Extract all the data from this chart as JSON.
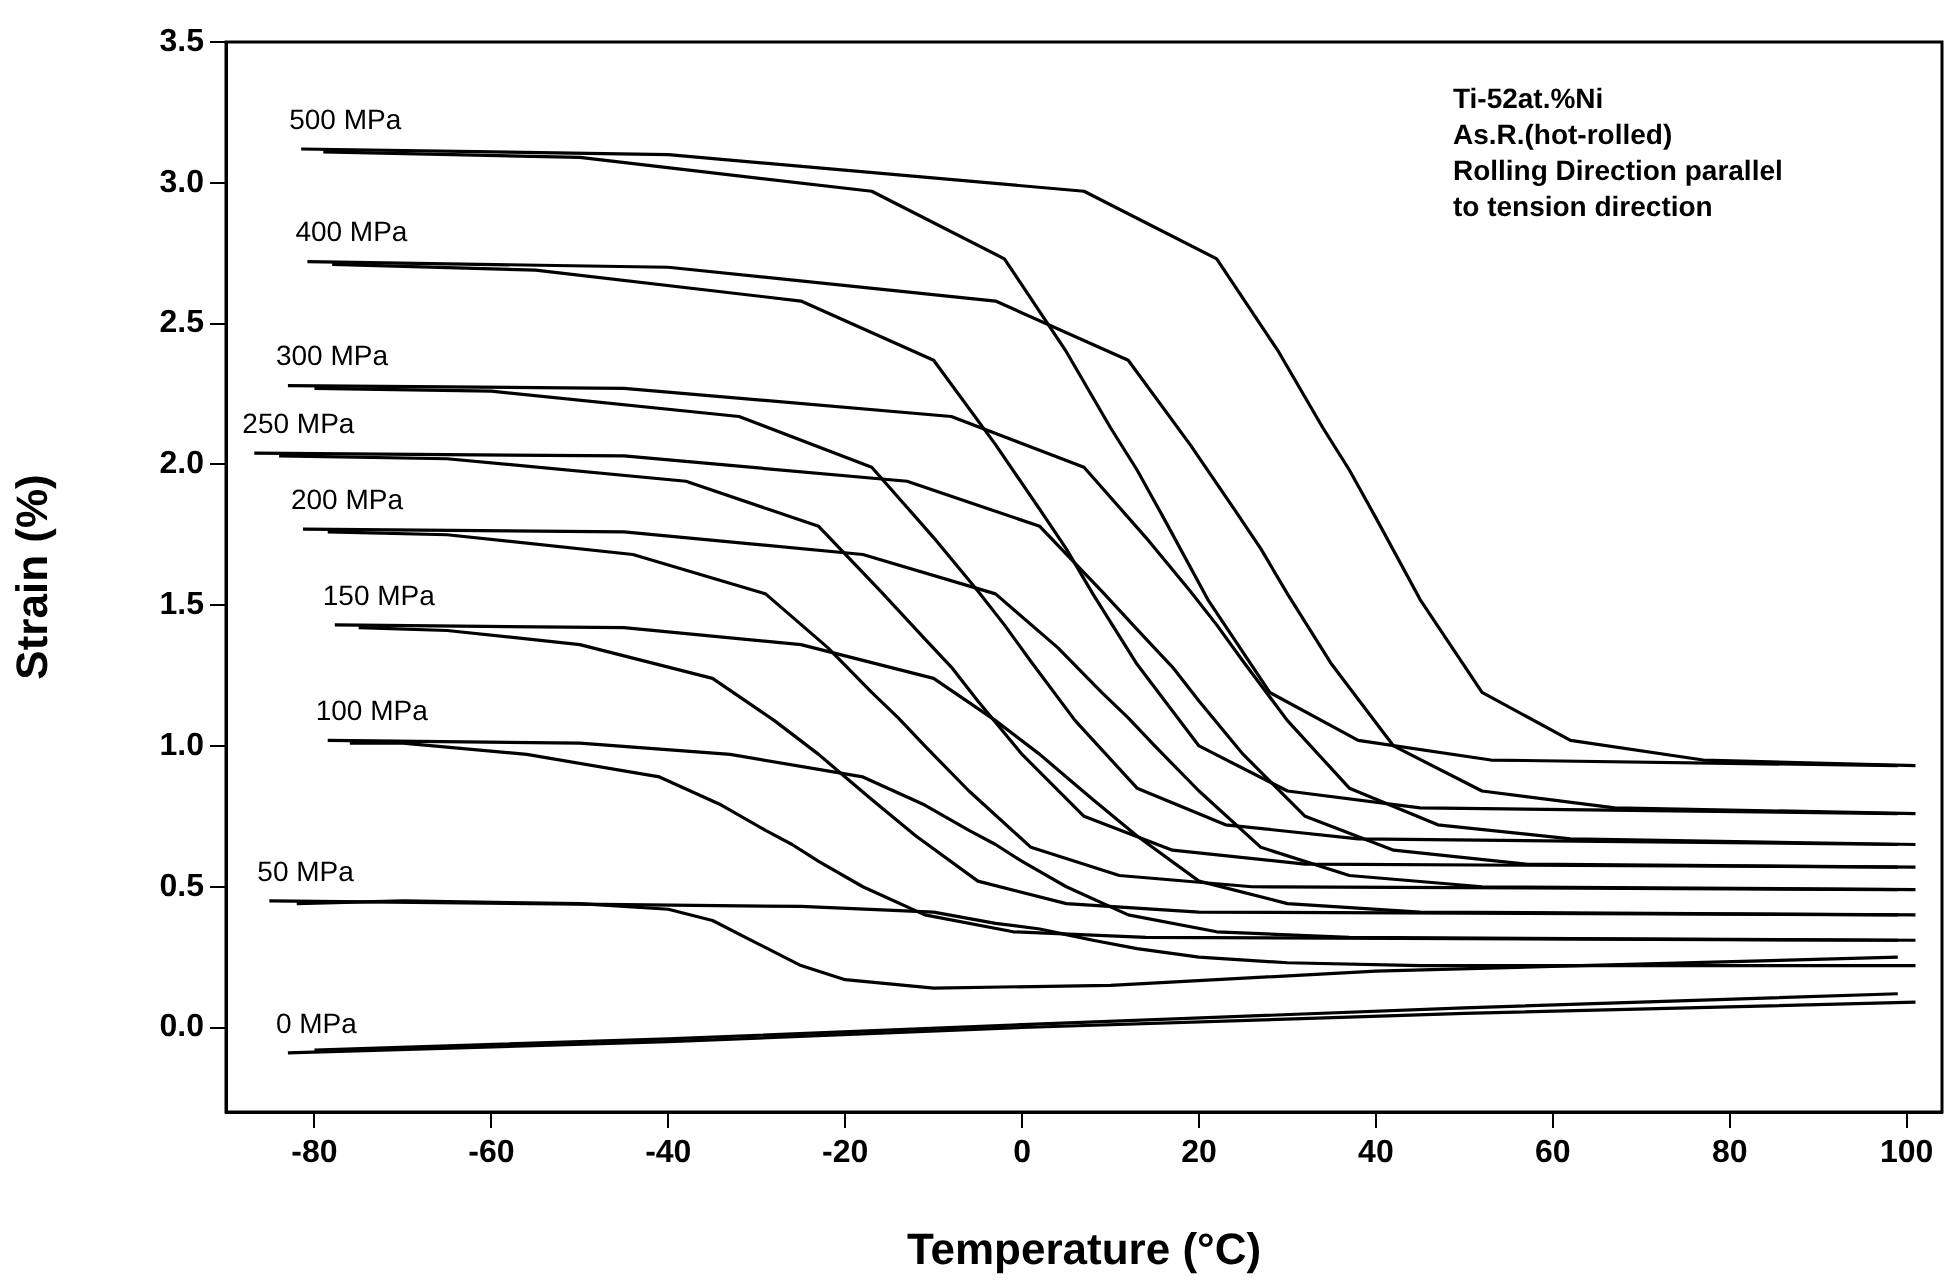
{
  "chart_data": {
    "type": "line",
    "xlabel": "Temperature (°C)",
    "ylabel": "Strain (%)",
    "annotations": [
      "Ti-52at.%Ni",
      "As.R.(hot-rolled)",
      "Rolling Direction parallel",
      "to tension direction"
    ],
    "xlim": [
      -90,
      104
    ],
    "xticks": [
      -80,
      -60,
      -40,
      -20,
      0,
      20,
      40,
      60,
      80,
      100
    ],
    "ylim": [
      -0.3,
      3.5
    ],
    "yticks": [
      {
        "value": 0,
        "label": "0.0"
      },
      0.5,
      {
        "value": 1,
        "label": "1.0"
      },
      1.5,
      {
        "value": 2,
        "label": "2.0"
      },
      2.5,
      {
        "value": 3,
        "label": "3.0"
      },
      3.5
    ],
    "grid": false,
    "legend": false,
    "marker": "none",
    "line_style": "solid",
    "series": [
      {
        "name": "500 MPa",
        "color": "#000000",
        "x": [
          -81.5,
          -40,
          7,
          22,
          29,
          34,
          37,
          40,
          45,
          52,
          62,
          77,
          101
        ],
        "values": [
          3.12,
          3.1,
          2.97,
          2.73,
          2.4,
          2.13,
          1.98,
          1.81,
          1.52,
          1.19,
          1.02,
          0.95,
          0.93
        ]
      },
      {
        "color": "#000000",
        "x": [
          -79,
          -50,
          -17,
          -2,
          5,
          10,
          13,
          16,
          21,
          28,
          38,
          53,
          99
        ],
        "values": [
          3.11,
          3.09,
          2.97,
          2.73,
          2.4,
          2.13,
          1.98,
          1.81,
          1.52,
          1.19,
          1.02,
          0.95,
          0.93
        ]
      },
      {
        "name": "400 MPa",
        "color": "#000000",
        "x": [
          -80.8,
          -40,
          -3,
          12,
          19,
          24,
          27,
          30,
          35,
          42,
          52,
          67,
          101
        ],
        "values": [
          2.72,
          2.7,
          2.58,
          2.37,
          2.07,
          1.84,
          1.7,
          1.54,
          1.29,
          1.0,
          0.84,
          0.78,
          0.76
        ]
      },
      {
        "color": "#000000",
        "x": [
          -78,
          -55,
          -25,
          -10,
          -3,
          2,
          5,
          8,
          13,
          20,
          30,
          45,
          99
        ],
        "values": [
          2.71,
          2.69,
          2.58,
          2.37,
          2.07,
          1.84,
          1.7,
          1.54,
          1.29,
          1.0,
          0.84,
          0.78,
          0.76
        ]
      },
      {
        "name": "300 MPa",
        "color": "#000000",
        "x": [
          -83,
          -45,
          -8,
          7,
          14,
          19,
          22,
          25,
          30,
          37,
          47,
          62,
          101
        ],
        "values": [
          2.28,
          2.27,
          2.17,
          1.99,
          1.74,
          1.55,
          1.43,
          1.3,
          1.09,
          0.85,
          0.72,
          0.67,
          0.65
        ]
      },
      {
        "color": "#000000",
        "x": [
          -80,
          -60,
          -32,
          -17,
          -10,
          -5,
          -2,
          1,
          6,
          13,
          23,
          38,
          99
        ],
        "values": [
          2.27,
          2.26,
          2.17,
          1.99,
          1.74,
          1.55,
          1.43,
          1.3,
          1.09,
          0.85,
          0.72,
          0.67,
          0.65
        ]
      },
      {
        "name": "250 MPa",
        "color": "#000000",
        "x": [
          -86.8,
          -45,
          -13,
          2,
          9,
          14,
          17,
          20,
          25,
          32,
          42,
          57,
          101
        ],
        "values": [
          2.04,
          2.03,
          1.94,
          1.78,
          1.55,
          1.38,
          1.28,
          1.16,
          0.97,
          0.75,
          0.63,
          0.58,
          0.57
        ]
      },
      {
        "color": "#000000",
        "x": [
          -84,
          -65,
          -38,
          -23,
          -16,
          -11,
          -8,
          -5,
          0,
          7,
          17,
          32,
          99
        ],
        "values": [
          2.03,
          2.02,
          1.94,
          1.78,
          1.55,
          1.38,
          1.28,
          1.16,
          0.97,
          0.75,
          0.63,
          0.58,
          0.57
        ]
      },
      {
        "name": "200 MPa",
        "color": "#000000",
        "x": [
          -81.3,
          -45,
          -18,
          -3,
          4,
          9,
          12,
          15,
          20,
          27,
          37,
          52,
          101
        ],
        "values": [
          1.77,
          1.76,
          1.68,
          1.54,
          1.35,
          1.19,
          1.1,
          1.0,
          0.84,
          0.64,
          0.54,
          0.5,
          0.49
        ]
      },
      {
        "color": "#000000",
        "x": [
          -78.5,
          -65,
          -44,
          -29,
          -22,
          -17,
          -14,
          -11,
          -6,
          1,
          11,
          26,
          99
        ],
        "values": [
          1.76,
          1.75,
          1.68,
          1.54,
          1.35,
          1.19,
          1.1,
          1.0,
          0.84,
          0.64,
          0.54,
          0.5,
          0.49
        ]
      },
      {
        "name": "150 MPa",
        "color": "#000000",
        "x": [
          -77.7,
          -45,
          -25,
          -10,
          -3,
          2,
          5,
          8,
          13,
          20,
          30,
          45,
          101
        ],
        "values": [
          1.43,
          1.42,
          1.36,
          1.24,
          1.09,
          0.97,
          0.89,
          0.81,
          0.68,
          0.52,
          0.44,
          0.41,
          0.4
        ]
      },
      {
        "color": "#000000",
        "x": [
          -75,
          -65,
          -50,
          -35,
          -28,
          -23,
          -20,
          -17,
          -12,
          -5,
          5,
          20,
          99
        ],
        "values": [
          1.42,
          1.41,
          1.36,
          1.24,
          1.09,
          0.97,
          0.89,
          0.81,
          0.68,
          0.52,
          0.44,
          0.41,
          0.4
        ]
      },
      {
        "name": "100 MPa",
        "color": "#000000",
        "x": [
          -78.5,
          -50,
          -33,
          -18,
          -11,
          -6,
          -3,
          0,
          5,
          12,
          22,
          37,
          101
        ],
        "values": [
          1.02,
          1.01,
          0.97,
          0.89,
          0.79,
          0.7,
          0.65,
          0.59,
          0.5,
          0.4,
          0.34,
          0.32,
          0.31
        ]
      },
      {
        "color": "#000000",
        "x": [
          -76,
          -70,
          -56,
          -41,
          -34,
          -29,
          -26,
          -23,
          -18,
          -11,
          -1,
          14,
          99
        ],
        "values": [
          1.01,
          1.01,
          0.97,
          0.89,
          0.79,
          0.7,
          0.65,
          0.59,
          0.5,
          0.4,
          0.34,
          0.32,
          0.31
        ]
      },
      {
        "name": "50 MPa",
        "color": "#000000",
        "x": [
          -85.1,
          -25,
          -10,
          -3,
          2,
          5,
          8,
          13,
          20,
          30,
          45,
          101
        ],
        "values": [
          0.45,
          0.43,
          0.41,
          0.37,
          0.35,
          0.33,
          0.31,
          0.28,
          0.25,
          0.23,
          0.22,
          0.22
        ]
      },
      {
        "color": "#000000",
        "x": [
          -82,
          -70,
          -50,
          -40,
          -35,
          -30,
          -25,
          -20,
          -10,
          10,
          40,
          99
        ],
        "values": [
          0.44,
          0.45,
          0.44,
          0.42,
          0.38,
          0.3,
          0.22,
          0.17,
          0.14,
          0.15,
          0.2,
          0.25
        ]
      },
      {
        "name": "0 MPa",
        "color": "#000000",
        "x": [
          -83,
          -40,
          0,
          50,
          101
        ],
        "values": [
          -0.09,
          -0.05,
          0.0,
          0.05,
          0.09
        ]
      },
      {
        "color": "#000000",
        "x": [
          -80,
          -40,
          0,
          50,
          99
        ],
        "values": [
          -0.08,
          -0.04,
          0.01,
          0.07,
          0.12
        ]
      }
    ]
  }
}
